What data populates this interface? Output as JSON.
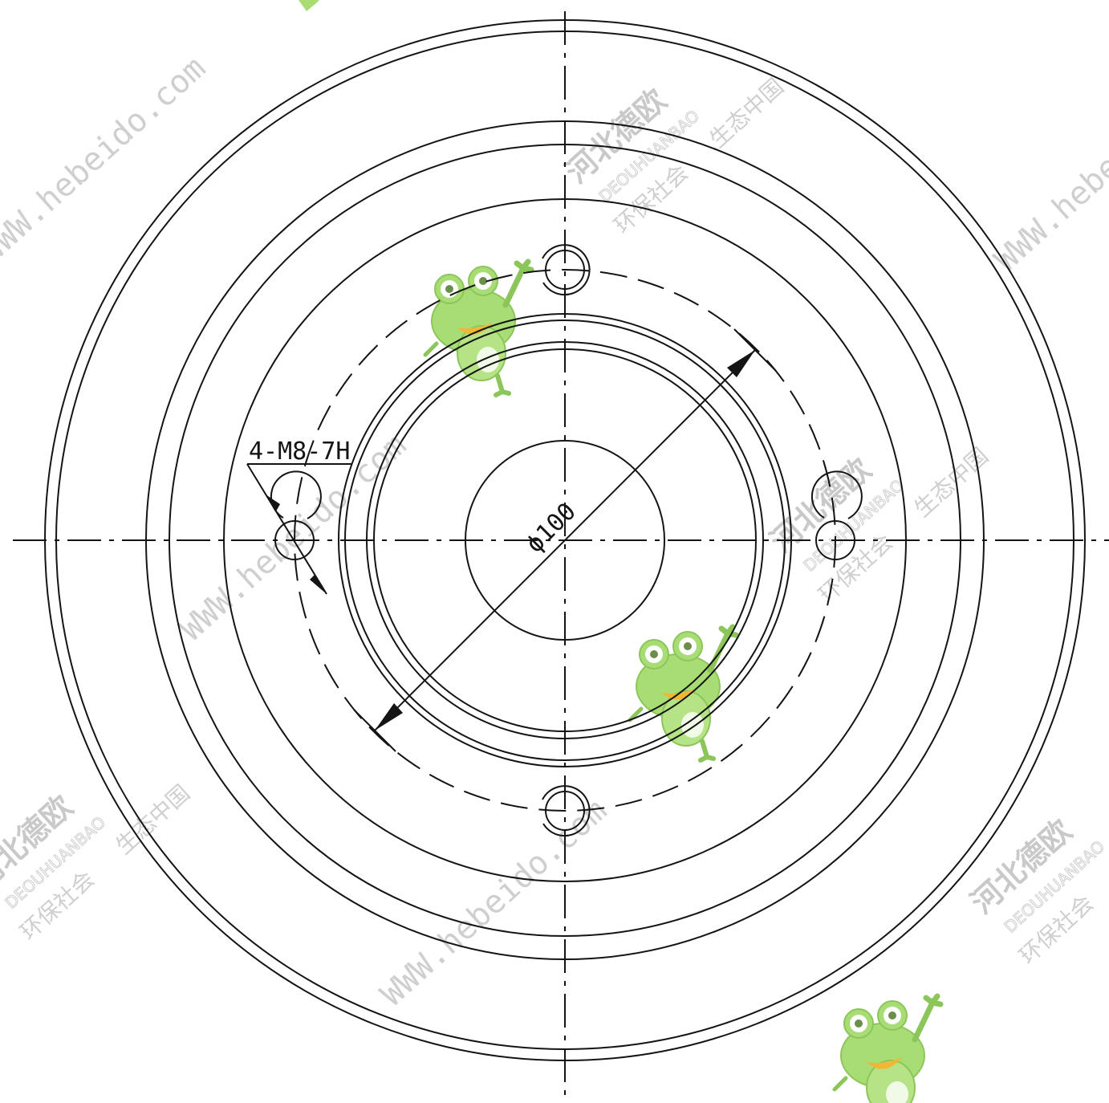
{
  "drawing": {
    "thread_callout": "4-M8-7H",
    "diameter_callout": "ϕ100"
  },
  "watermark": {
    "url": "WWW.hebeido.com",
    "company": "河北德欧",
    "brand_en": "DEOUHUANBAO",
    "slogan_left": "环保社会",
    "slogan_right": "生态中国",
    "mascot": "frog-mascot-icon"
  },
  "colors": {
    "line": "#141414",
    "watermark_text": "#cfcfcf",
    "mascot_green": "#9fd86a"
  }
}
